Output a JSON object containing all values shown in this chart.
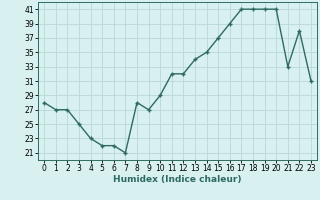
{
  "x": [
    0,
    1,
    2,
    3,
    4,
    5,
    6,
    7,
    8,
    9,
    10,
    11,
    12,
    13,
    14,
    15,
    16,
    17,
    18,
    19,
    20,
    21,
    22,
    23
  ],
  "y": [
    28,
    27,
    27,
    25,
    23,
    22,
    22,
    21,
    28,
    27,
    29,
    32,
    32,
    34,
    35,
    37,
    39,
    41,
    41,
    41,
    41,
    33,
    38,
    31
  ],
  "line_color": "#2e6b5e",
  "marker": "+",
  "marker_size": 3,
  "line_width": 1.0,
  "bg_color": "#d8f0f0",
  "grid_color": "#b8d8d8",
  "xlabel": "Humidex (Indice chaleur)",
  "xlim": [
    -0.5,
    23.5
  ],
  "ylim": [
    20,
    42
  ],
  "yticks": [
    21,
    23,
    25,
    27,
    29,
    31,
    33,
    35,
    37,
    39,
    41
  ],
  "xticks": [
    0,
    1,
    2,
    3,
    4,
    5,
    6,
    7,
    8,
    9,
    10,
    11,
    12,
    13,
    14,
    15,
    16,
    17,
    18,
    19,
    20,
    21,
    22,
    23
  ],
  "tick_fontsize": 5.5,
  "xlabel_fontsize": 6.5
}
